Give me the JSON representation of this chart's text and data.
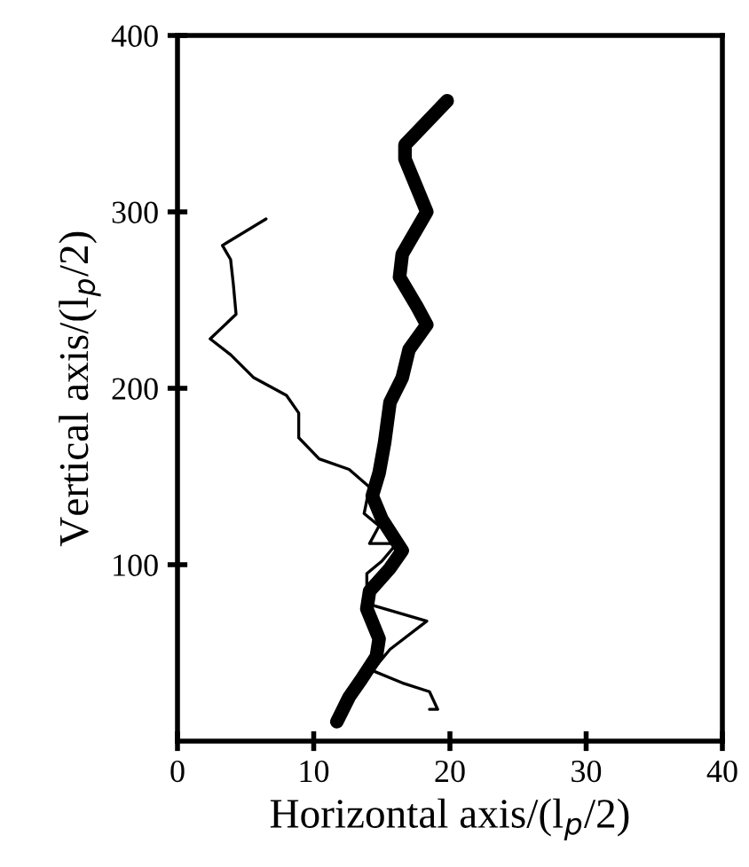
{
  "chart_data": {
    "type": "line",
    "xlabel": "Horizontal axis/(l$_{p}$/2)",
    "ylabel": "Vertical axis/(l$_{p}$/2)",
    "xlim": [
      0,
      40
    ],
    "ylim": [
      0,
      400
    ],
    "xticks": [
      0,
      10,
      20,
      30,
      40
    ],
    "yticks": [
      100,
      200,
      300,
      400
    ],
    "grid": false,
    "legend": false,
    "marker": "none",
    "line_style": "solid",
    "series": [
      {
        "color": "#000000",
        "x": [
          19.8,
          16.7,
          16.7,
          18.3,
          16.5,
          16.3,
          17.6,
          18.3,
          17.0,
          16.5,
          15.6,
          15.2,
          14.8,
          14.3,
          15.0,
          16.5,
          15.6,
          14.1,
          13.9,
          14.8,
          14.6,
          13.5,
          12.6,
          11.7
        ],
        "values": [
          363,
          338,
          330,
          300,
          276,
          263,
          246,
          236,
          222,
          206,
          192,
          169,
          152,
          139,
          126,
          108,
          98,
          85,
          75,
          58,
          48,
          35,
          25,
          11
        ]
      },
      {
        "color": "#000000",
        "x": [
          6.5,
          3.3,
          3.9,
          4.1,
          4.3,
          2.4,
          3.9,
          5.6,
          8.0,
          8.9,
          8.9,
          10.4,
          12.6,
          14.1,
          13.7,
          14.8,
          14.1,
          16.1,
          15.0,
          13.9,
          13.9,
          18.3,
          15.6,
          14.3,
          16.5,
          18.5,
          19.1,
          18.5
        ],
        "values": [
          296,
          281,
          273,
          259,
          242,
          228,
          219,
          206,
          196,
          186,
          172,
          160,
          154,
          144,
          129,
          122,
          112,
          112,
          102,
          95,
          78,
          68,
          52,
          40,
          33,
          28,
          18,
          18
        ]
      }
    ]
  }
}
